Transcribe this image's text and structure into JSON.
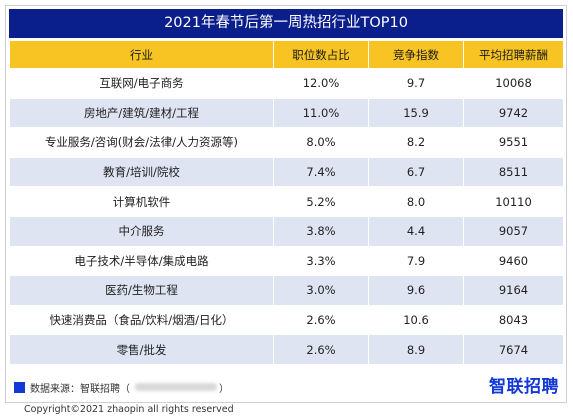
{
  "chart_data": {
    "type": "table",
    "title": "2021年春节后第一周热招行业TOP10",
    "columns": [
      "行业",
      "职位数占比",
      "竞争指数",
      "平均招聘薪酬"
    ],
    "rows": [
      [
        "互联网/电子商务",
        "12.0%",
        "9.7",
        "10068"
      ],
      [
        "房地产/建筑/建材/工程",
        "11.0%",
        "15.9",
        "9742"
      ],
      [
        "专业服务/咨询(财会/法律/人力资源等)",
        "8.0%",
        "8.2",
        "9551"
      ],
      [
        "教育/培训/院校",
        "7.4%",
        "6.7",
        "8511"
      ],
      [
        "计算机软件",
        "5.2%",
        "8.0",
        "10110"
      ],
      [
        "中介服务",
        "3.8%",
        "4.4",
        "9057"
      ],
      [
        "电子技术/半导体/集成电路",
        "3.3%",
        "7.9",
        "9460"
      ],
      [
        "医药/生物工程",
        "3.0%",
        "9.6",
        "9164"
      ],
      [
        "快速消费品（食品/饮料/烟酒/日化）",
        "2.6%",
        "10.6",
        "8043"
      ],
      [
        "零售/批发",
        "2.6%",
        "8.9",
        "7674"
      ]
    ]
  },
  "footer": {
    "source_label": "数据来源：智联招聘（",
    "source_close": "）",
    "logo": "智联招聘",
    "copyright": "Copyright©2021 zhaopin all rights reserved"
  },
  "colors": {
    "title_bg": "#0a1e8c",
    "header_bg": "#f7c423",
    "stripe_bg": "#dfe4f3",
    "brand_blue": "#1238d6"
  }
}
